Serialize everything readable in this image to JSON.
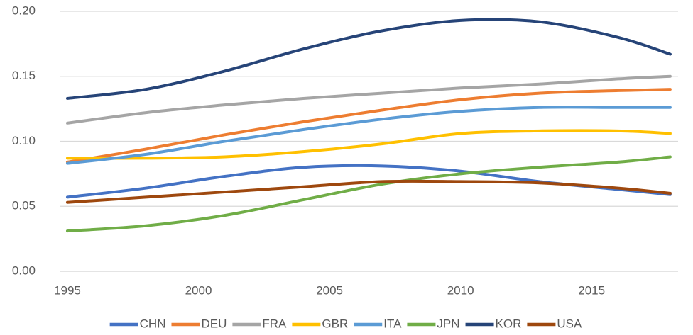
{
  "chart_data": {
    "type": "line",
    "x": [
      1995,
      1998,
      2001,
      2004,
      2007,
      2010,
      2013,
      2016,
      2018
    ],
    "series": [
      {
        "name": "CHN",
        "color": "#4472c4",
        "values": [
          0.057,
          0.064,
          0.073,
          0.08,
          0.081,
          0.077,
          0.069,
          0.063,
          0.059
        ]
      },
      {
        "name": "DEU",
        "color": "#ed7d31",
        "values": [
          0.084,
          0.094,
          0.105,
          0.115,
          0.124,
          0.132,
          0.137,
          0.139,
          0.14
        ]
      },
      {
        "name": "FRA",
        "color": "#a5a5a5",
        "values": [
          0.114,
          0.122,
          0.128,
          0.133,
          0.137,
          0.141,
          0.144,
          0.148,
          0.15
        ]
      },
      {
        "name": "GBR",
        "color": "#ffc000",
        "values": [
          0.087,
          0.087,
          0.088,
          0.092,
          0.098,
          0.106,
          0.108,
          0.108,
          0.106
        ]
      },
      {
        "name": "ITA",
        "color": "#5b9bd5",
        "values": [
          0.083,
          0.09,
          0.1,
          0.109,
          0.117,
          0.123,
          0.126,
          0.126,
          0.126
        ]
      },
      {
        "name": "JPN",
        "color": "#70ad47",
        "values": [
          0.031,
          0.035,
          0.043,
          0.055,
          0.067,
          0.075,
          0.08,
          0.084,
          0.088
        ]
      },
      {
        "name": "KOR",
        "color": "#264478",
        "values": [
          0.133,
          0.14,
          0.154,
          0.171,
          0.185,
          0.193,
          0.192,
          0.18,
          0.167
        ]
      },
      {
        "name": "USA",
        "color": "#9e480e",
        "values": [
          0.053,
          0.057,
          0.061,
          0.065,
          0.069,
          0.069,
          0.068,
          0.064,
          0.06
        ]
      }
    ],
    "xlim": [
      1994.73,
      2018.3
    ],
    "xticks": [
      1995,
      2000,
      2005,
      2010,
      2015
    ],
    "ylim": [
      0,
      0.2
    ],
    "yticks": [
      {
        "value": 0,
        "label": "0.00"
      },
      {
        "value": 0.05,
        "label": "0.05"
      },
      {
        "value": 0.1,
        "label": "0.10"
      },
      {
        "value": 0.15,
        "label": "0.15"
      },
      {
        "value": 0.2,
        "label": "0.20"
      }
    ],
    "grid": true,
    "smooth": true,
    "legend": "bottom"
  }
}
